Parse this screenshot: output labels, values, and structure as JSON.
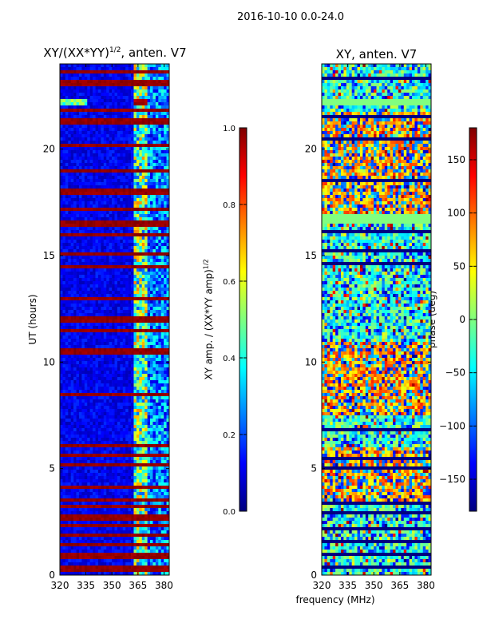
{
  "figure": {
    "suptitle": "2016-10-10 0.0-24.0",
    "shared_xlabel": "frequency (MHz)"
  },
  "chart_data": [
    {
      "type": "heatmap",
      "title": "XY/(XX*YY)$^{1/2}$, anten. V7",
      "title_main": "XY/(XX*YY)",
      "title_sup": "1/2",
      "title_tail": ", anten. V7",
      "xlabel": "frequency (MHz)",
      "ylabel": "UT (hours)",
      "xlim": [
        320,
        383
      ],
      "ylim": [
        0,
        24
      ],
      "xticks": [
        320,
        335,
        350,
        365,
        380
      ],
      "yticks": [
        0,
        5,
        10,
        15,
        20
      ],
      "colorbar": {
        "label_main": "XY amp. / (XX*YY amp)",
        "label_sup": "1/2",
        "range": [
          0.0,
          1.0
        ],
        "ticks": [
          "0.0",
          "0.2",
          "0.4",
          "0.6",
          "0.8",
          "1.0"
        ],
        "tick_values": [
          0.0,
          0.2,
          0.4,
          0.6,
          0.8,
          1.0
        ],
        "colormap": "jet"
      },
      "features": {
        "saturated_ut_bands_hours": [
          0.3,
          0.9,
          1.4,
          1.9,
          2.3,
          2.7,
          3.2,
          3.5,
          4.1,
          5.2,
          5.6,
          6.1,
          8.5,
          10.5,
          11.5,
          12.0,
          13.0,
          14.5,
          15.1,
          16.0,
          16.5,
          17.2,
          18.0,
          19.0,
          20.2,
          21.3,
          21.8,
          23.1,
          23.6
        ],
        "flagged_freq_band_mhz": [
          362,
          371
        ],
        "bright_feature_ut_hours": [
          22.0,
          22.4
        ]
      }
    },
    {
      "type": "heatmap",
      "title": "XY, anten. V7",
      "xlabel": "frequency (MHz)",
      "ylabel": "",
      "xlim": [
        320,
        383
      ],
      "ylim": [
        0,
        24
      ],
      "xticks": [
        320,
        335,
        350,
        365,
        380
      ],
      "yticks": [
        0,
        5,
        10,
        15,
        20
      ],
      "colorbar": {
        "label": "phase (deg)",
        "range": [
          -180,
          180
        ],
        "ticks": [
          "−150",
          "−100",
          "−50",
          "0",
          "50",
          "100",
          "150"
        ],
        "tick_values": [
          -150,
          -100,
          -50,
          0,
          50,
          100,
          150
        ],
        "colormap": "jet"
      },
      "features": {
        "blank_ut_bands_hours": [
          0.4,
          1.0,
          1.6,
          2.2,
          2.9,
          3.4,
          5.0,
          5.5,
          6.0,
          6.8,
          7.2,
          14.6,
          15.2,
          16.1,
          18.5,
          19.8,
          20.5,
          21.5,
          22.8,
          23.3
        ],
        "constant_phase_band_ut_hours": [
          16.5,
          17.0
        ],
        "green_strip_ut_hours": [
          22.0,
          22.4
        ]
      }
    }
  ]
}
